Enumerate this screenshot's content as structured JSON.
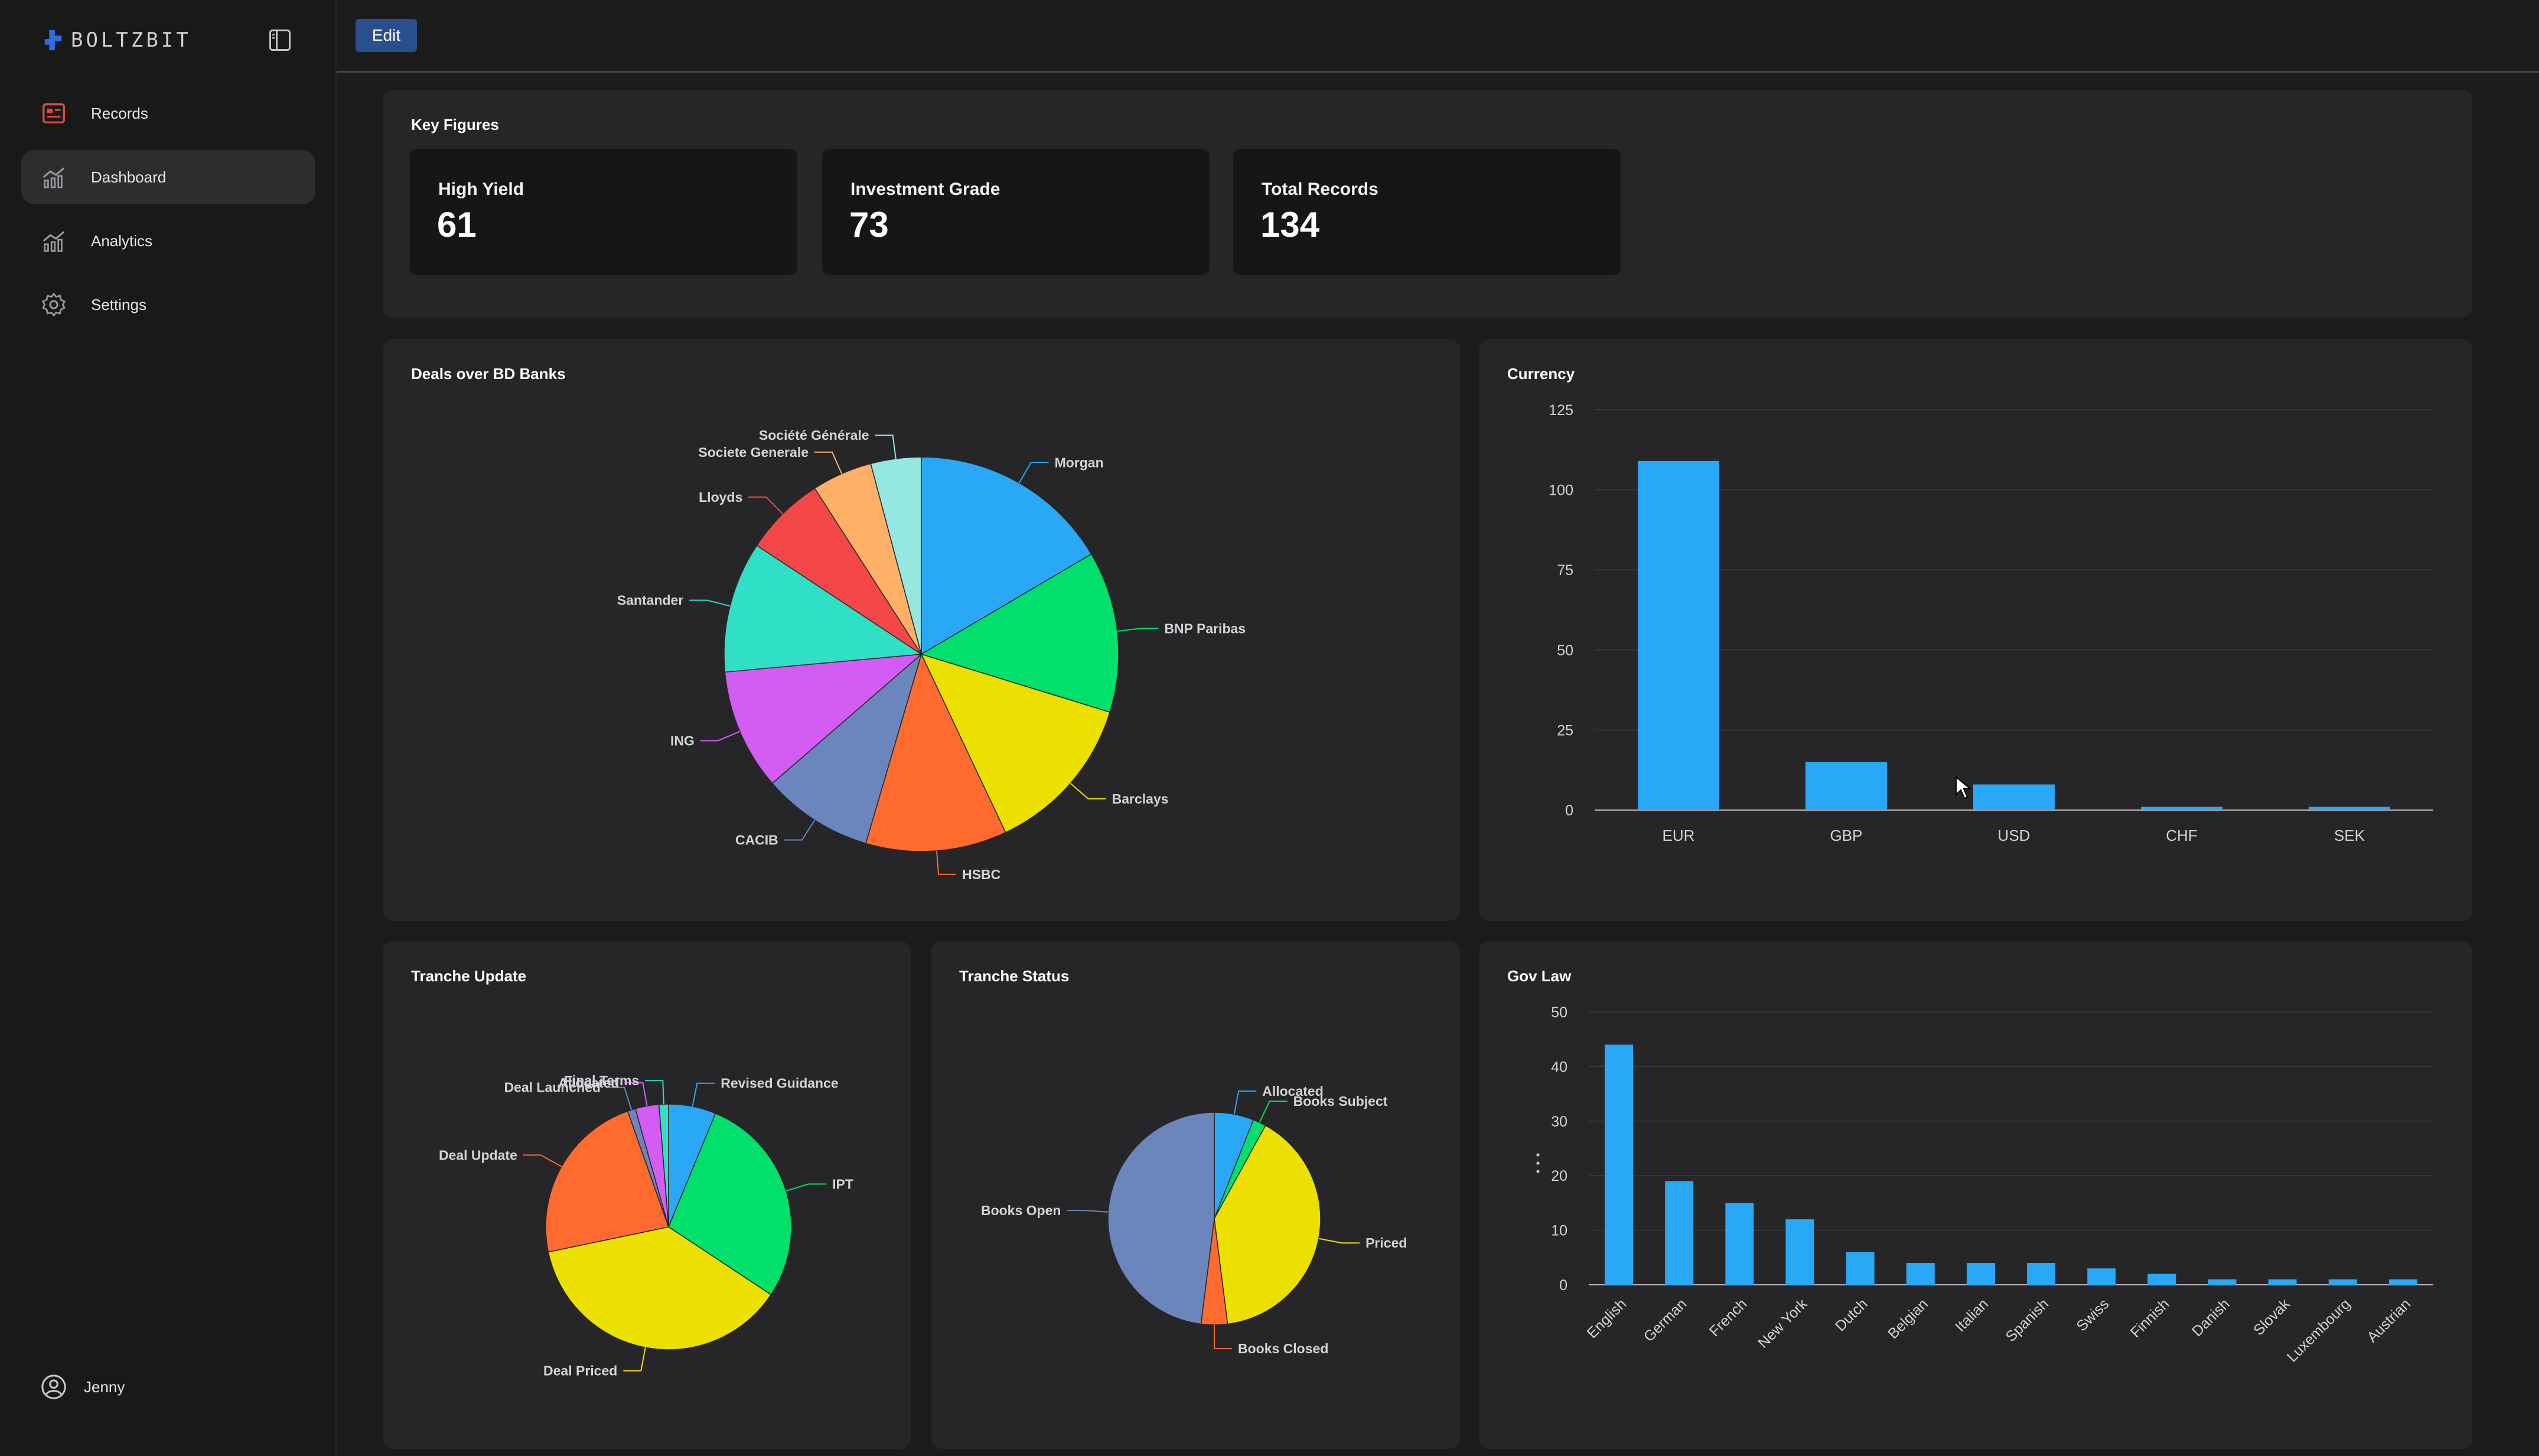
{
  "app": {
    "brand": "BOLTZBIT"
  },
  "sidebar": {
    "items": [
      {
        "label": "Records",
        "icon": "records-icon",
        "active": false
      },
      {
        "label": "Dashboard",
        "icon": "dashboard-icon",
        "active": true
      },
      {
        "label": "Analytics",
        "icon": "analytics-icon",
        "active": false
      },
      {
        "label": "Settings",
        "icon": "gear-icon",
        "active": false
      }
    ],
    "user": {
      "name": "Jenny",
      "icon": "user-icon"
    }
  },
  "toolbar": {
    "edit_label": "Edit"
  },
  "key_figures": {
    "title": "Key Figures",
    "cards": [
      {
        "label": "High Yield",
        "value": "61"
      },
      {
        "label": "Investment Grade",
        "value": "73"
      },
      {
        "label": "Total Records",
        "value": "134"
      }
    ]
  },
  "panels": {
    "banks": "Deals over BD Banks",
    "currency": "Currency",
    "tranche_update": "Tranche Update",
    "tranche_status": "Tranche Status",
    "gov_law": "Gov Law"
  },
  "chart_data": [
    {
      "id": "banks",
      "type": "pie",
      "title": "Deals over BD Banks",
      "labels": [
        "Morgan",
        "BNP Paribas",
        "Barclays",
        "HSBC",
        "CACIB",
        "ING",
        "Santander",
        "Lloyds",
        "Societe Generale",
        "Société Générale"
      ],
      "values": [
        20,
        16,
        16,
        14,
        11,
        12,
        13,
        8,
        6,
        5
      ],
      "colors": [
        "#2aa8f8",
        "#00e06a",
        "#ece000",
        "#ff6a2e",
        "#6a86bd",
        "#d35df2",
        "#2fdfc6",
        "#f44747",
        "#ffb066",
        "#94e8e0"
      ]
    },
    {
      "id": "currency",
      "type": "bar",
      "title": "Currency",
      "categories": [
        "EUR",
        "GBP",
        "USD",
        "CHF",
        "SEK"
      ],
      "values": [
        109,
        15,
        8,
        1,
        1
      ],
      "ylim": [
        0,
        125
      ],
      "yticks": [
        0,
        25,
        50,
        75,
        100,
        125
      ],
      "color": "#2aa8f8",
      "grid": true
    },
    {
      "id": "tranche_update",
      "type": "pie",
      "title": "Tranche Update",
      "labels": [
        "Revised Guidance",
        "IPT",
        "Deal Priced",
        "Deal Update",
        "Deal Launched",
        "Allocated",
        "Final Terms"
      ],
      "values": [
        6,
        27,
        36,
        22,
        1,
        3,
        1.2
      ],
      "colors": [
        "#2aa8f8",
        "#00e06a",
        "#ece000",
        "#ff6a2e",
        "#6a86bd",
        "#d35df2",
        "#2fdfc6"
      ]
    },
    {
      "id": "tranche_status",
      "type": "pie",
      "title": "Tranche Status",
      "labels": [
        "Allocated",
        "Books Subject",
        "Priced",
        "Books Closed",
        "Books Open"
      ],
      "values": [
        6,
        2,
        40,
        4,
        48
      ],
      "colors": [
        "#2aa8f8",
        "#00e06a",
        "#ece000",
        "#ff6a2e",
        "#6a86bd"
      ]
    },
    {
      "id": "gov_law",
      "type": "bar",
      "title": "Gov Law",
      "categories": [
        "English",
        "German",
        "French",
        "New York",
        "Dutch",
        "Belgian",
        "Italian",
        "Spanish",
        "Swiss",
        "Finnish",
        "Danish",
        "Slovak",
        "Luxembourg",
        "Austrian"
      ],
      "values": [
        44,
        19,
        15,
        12,
        6,
        4,
        4,
        4,
        3,
        2,
        1,
        1,
        1,
        1
      ],
      "ylim": [
        0,
        50
      ],
      "yticks": [
        0,
        10,
        20,
        30,
        40,
        50
      ],
      "color": "#2aa8f8",
      "grid": true
    }
  ]
}
